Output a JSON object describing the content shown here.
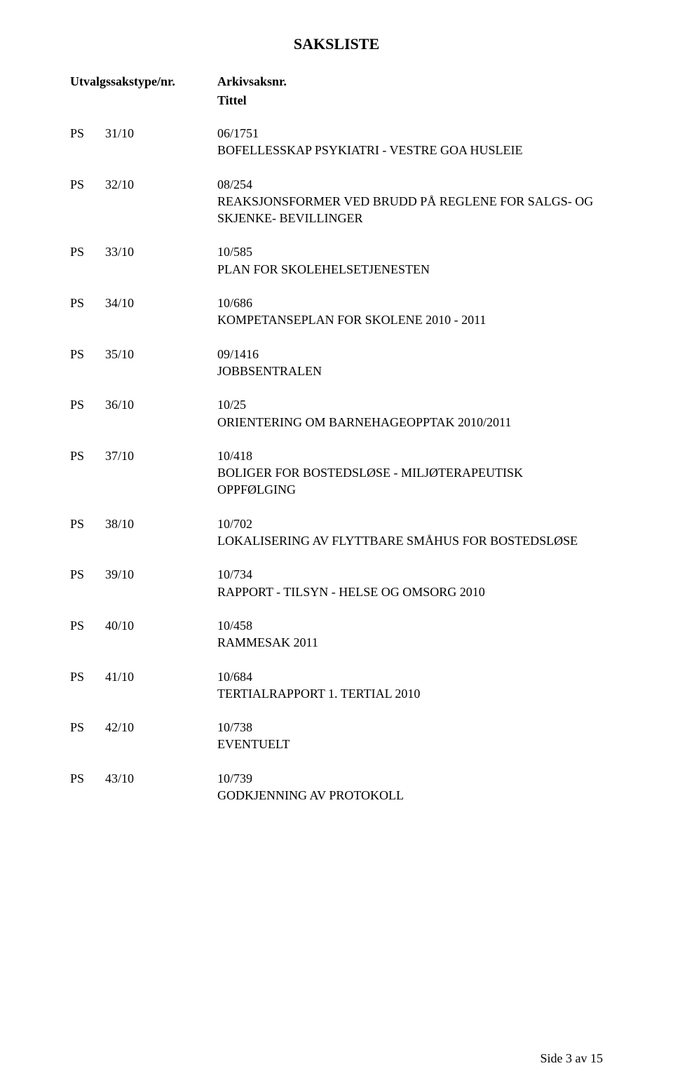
{
  "heading": "SAKSLISTE",
  "header": {
    "col1": "Utvalgssakstype/nr.",
    "col2": "Arkivsaksnr.",
    "sub": "Tittel"
  },
  "ps_label": "PS",
  "entries": [
    {
      "num": "31/10",
      "arkiv": "06/1751",
      "title": "BOFELLESSKAP PSYKIATRI - VESTRE GOA HUSLEIE"
    },
    {
      "num": "32/10",
      "arkiv": "08/254",
      "title": "REAKSJONSFORMER VED BRUDD PÅ REGLENE FOR SALGS- OG SKJENKE- BEVILLINGER"
    },
    {
      "num": "33/10",
      "arkiv": "10/585",
      "title": "PLAN FOR SKOLEHELSETJENESTEN"
    },
    {
      "num": "34/10",
      "arkiv": "10/686",
      "title": "KOMPETANSEPLAN FOR SKOLENE 2010 - 2011"
    },
    {
      "num": "35/10",
      "arkiv": "09/1416",
      "title": "JOBBSENTRALEN"
    },
    {
      "num": "36/10",
      "arkiv": "10/25",
      "title": "ORIENTERING OM BARNEHAGEOPPTAK 2010/2011"
    },
    {
      "num": "37/10",
      "arkiv": "10/418",
      "title": "BOLIGER FOR BOSTEDSLØSE - MILJØTERAPEUTISK OPPFØLGING"
    },
    {
      "num": "38/10",
      "arkiv": "10/702",
      "title": "LOKALISERING AV FLYTTBARE SMÅHUS FOR BOSTEDSLØSE"
    },
    {
      "num": "39/10",
      "arkiv": "10/734",
      "title": "RAPPORT - TILSYN - HELSE OG OMSORG 2010"
    },
    {
      "num": "40/10",
      "arkiv": "10/458",
      "title": "RAMMESAK 2011"
    },
    {
      "num": "41/10",
      "arkiv": "10/684",
      "title": "TERTIALRAPPORT 1. TERTIAL 2010"
    },
    {
      "num": "42/10",
      "arkiv": "10/738",
      "title": "EVENTUELT"
    },
    {
      "num": "43/10",
      "arkiv": "10/739",
      "title": "GODKJENNING AV PROTOKOLL"
    }
  ],
  "footer": "Side 3 av 15"
}
